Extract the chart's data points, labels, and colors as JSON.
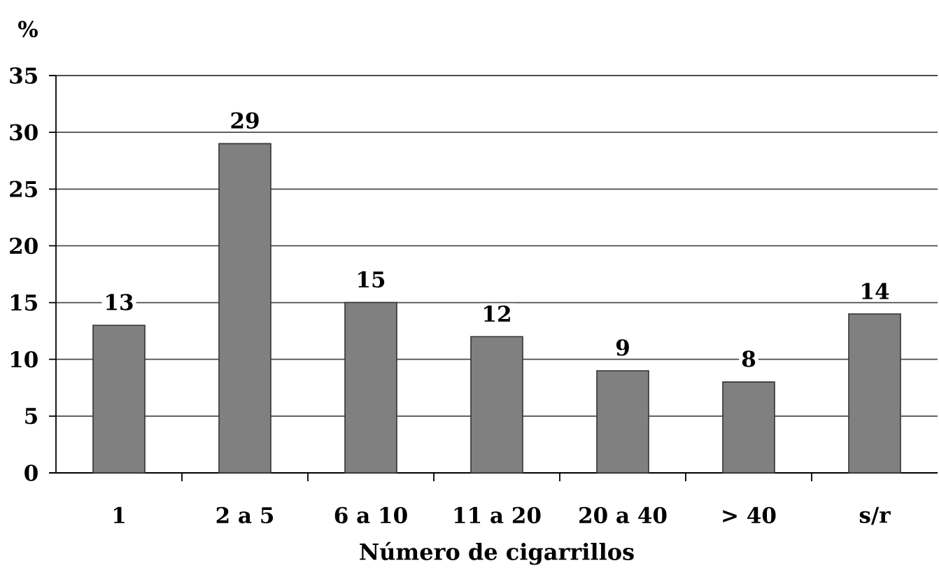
{
  "chart_data": {
    "type": "bar",
    "ylabel": "%",
    "xlabel": "Número de cigarrillos",
    "categories": [
      "1",
      "2 a 5",
      "6 a 10",
      "11 a 20",
      "20 a 40",
      "> 40",
      "s/r"
    ],
    "values": [
      13,
      29,
      15,
      12,
      9,
      8,
      14
    ],
    "color": "#808080",
    "ylim": [
      0,
      35
    ],
    "yticks": [
      0,
      5,
      10,
      15,
      20,
      25,
      30,
      35
    ],
    "grid": "y",
    "data_labels": true
  }
}
